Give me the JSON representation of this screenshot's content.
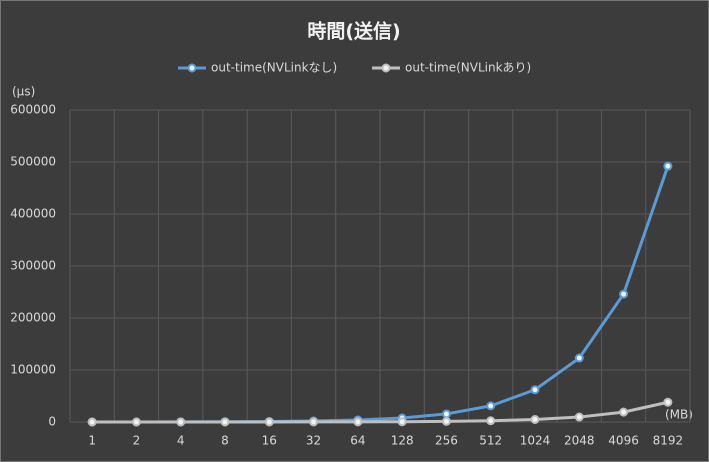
{
  "chart_data": {
    "type": "line",
    "title": "時間(送信)",
    "y_label": "(μs)",
    "x_label": "(MB)",
    "categories": [
      "1",
      "2",
      "4",
      "8",
      "16",
      "32",
      "64",
      "128",
      "256",
      "512",
      "1024",
      "2048",
      "4096",
      "8192"
    ],
    "series": [
      {
        "name": "out-time(NVLinkなし)",
        "color": "#5b9bd5",
        "values": [
          60,
          120,
          250,
          500,
          1000,
          1900,
          3900,
          7700,
          15500,
          31000,
          62000,
          123000,
          246000,
          492000
        ]
      },
      {
        "name": "out-time(NVLinkあり)",
        "color": "#bfbfbf",
        "values": [
          5,
          10,
          20,
          40,
          75,
          150,
          300,
          600,
          1200,
          2400,
          4800,
          9500,
          19000,
          38000
        ]
      }
    ],
    "ylim": [
      0,
      600000
    ],
    "yticks": [
      0,
      100000,
      200000,
      300000,
      400000,
      500000,
      600000
    ],
    "grid": true
  }
}
